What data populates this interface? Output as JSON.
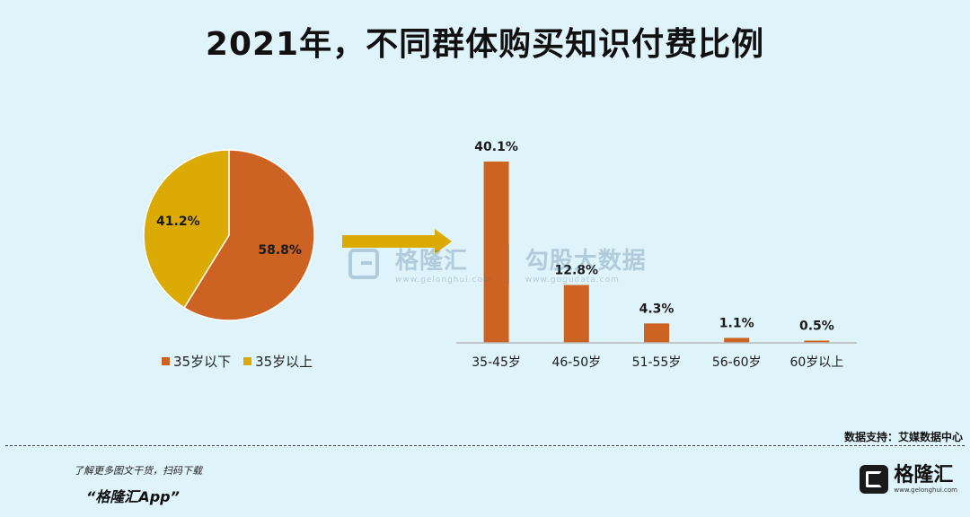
{
  "title": "2021年，不同群体购买知识付费比例",
  "chart_data": [
    {
      "type": "pie",
      "slices": [
        {
          "name": "35岁以下",
          "value": 58.8,
          "label": "58.8%",
          "color": "#cd6323"
        },
        {
          "name": "35岁以上",
          "value": 41.2,
          "label": "41.2%",
          "color": "#dcaa05"
        }
      ],
      "legend": [
        "35岁以下",
        "35岁以上"
      ],
      "legend_position": "bottom"
    },
    {
      "type": "bar",
      "categories": [
        "35-45岁",
        "46-50岁",
        "51-55岁",
        "56-60岁",
        "60岁以上"
      ],
      "values": [
        40.1,
        12.8,
        4.3,
        1.1,
        0.5
      ],
      "labels": [
        "40.1%",
        "12.8%",
        "4.3%",
        "1.1%",
        "0.5%"
      ],
      "color": "#cd6323",
      "ylim": [
        0,
        40.1
      ],
      "grid": false
    }
  ],
  "watermark": {
    "brand": "格隆汇",
    "brand_url": "www.gelonghui.com",
    "partner": "勾股大数据",
    "partner_url": "www.gogudata.com"
  },
  "source": "数据支持：艾媒数据中心",
  "footer": {
    "promo": "了解更多图文干货，扫码下载",
    "app_name": "“格隆汇App”",
    "brand_name": "格隆汇",
    "brand_url": "www.gelonghui.com"
  },
  "colors": {
    "background": "#dff3fa",
    "bar": "#cd6323",
    "pie_a": "#cd6323",
    "pie_b": "#dcaa05",
    "arrow": "#dcaa05"
  }
}
